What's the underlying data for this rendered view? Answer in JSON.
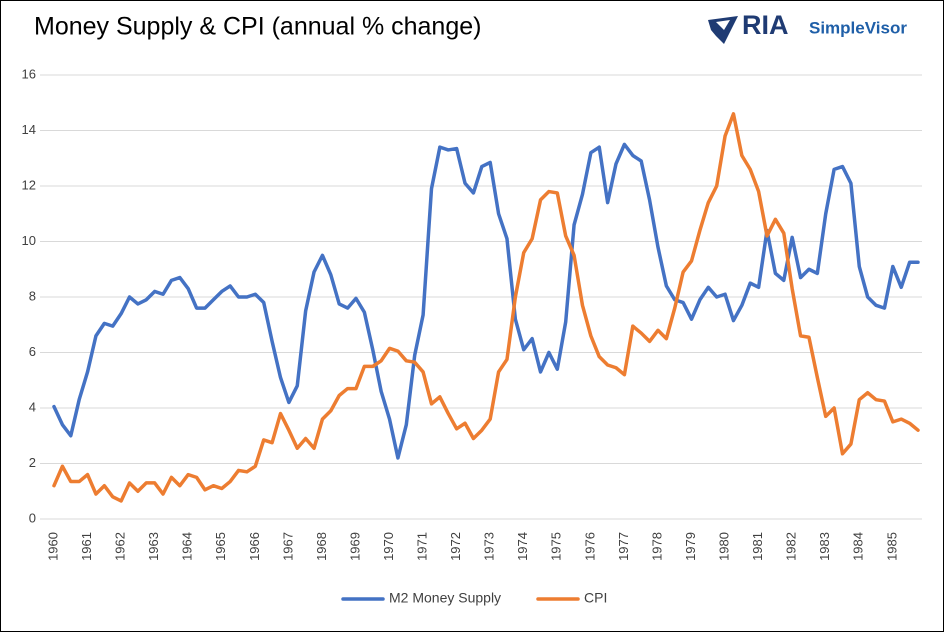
{
  "chart_data": {
    "type": "line",
    "title": "Money Supply & CPI (annual % change)",
    "logo": {
      "brand": "RIA",
      "product": "SimpleVisor"
    },
    "categories": [
      "1960",
      null,
      null,
      null,
      "1961",
      null,
      null,
      null,
      "1962",
      null,
      null,
      null,
      "1963",
      null,
      null,
      null,
      "1964",
      null,
      null,
      null,
      "1965",
      null,
      null,
      null,
      "1966",
      null,
      null,
      null,
      "1967",
      null,
      null,
      null,
      "1968",
      null,
      null,
      null,
      "1969",
      null,
      null,
      null,
      "1970",
      null,
      null,
      null,
      "1971",
      null,
      null,
      null,
      "1972",
      null,
      null,
      null,
      "1973",
      null,
      null,
      null,
      "1974",
      null,
      null,
      null,
      "1975",
      null,
      null,
      null,
      "1976",
      null,
      null,
      null,
      "1977",
      null,
      null,
      null,
      "1978",
      null,
      null,
      null,
      "1979",
      null,
      null,
      null,
      "1980",
      null,
      null,
      null,
      "1981",
      null,
      null,
      null,
      "1982",
      null,
      null,
      null,
      "1983",
      null,
      null,
      null,
      "1984",
      null,
      null,
      null,
      "1985",
      null,
      null,
      null
    ],
    "series": [
      {
        "name": "M2 Money Supply",
        "color": "#4472c4",
        "values": [
          4.05,
          3.4,
          3.0,
          4.3,
          5.3,
          6.6,
          7.05,
          6.95,
          7.4,
          8.0,
          7.75,
          7.9,
          8.2,
          8.1,
          8.6,
          8.7,
          8.3,
          7.6,
          7.6,
          7.9,
          8.2,
          8.4,
          8.0,
          8.0,
          8.1,
          7.8,
          6.4,
          5.1,
          4.2,
          4.8,
          7.5,
          8.9,
          9.5,
          8.8,
          7.75,
          7.6,
          7.95,
          7.45,
          6.1,
          4.6,
          3.6,
          2.2,
          3.4,
          5.9,
          7.35,
          11.9,
          13.4,
          13.3,
          13.35,
          12.1,
          11.75,
          12.7,
          12.85,
          11.0,
          10.1,
          7.2,
          6.1,
          6.5,
          5.3,
          6.0,
          5.4,
          7.1,
          10.6,
          11.7,
          13.2,
          13.4,
          11.4,
          12.8,
          13.5,
          13.1,
          12.9,
          11.5,
          9.8,
          8.4,
          7.9,
          7.8,
          7.2,
          7.9,
          8.35,
          8.0,
          8.1,
          7.15,
          7.7,
          8.5,
          8.35,
          10.4,
          8.85,
          8.6,
          10.15,
          8.7,
          9.0,
          8.85,
          11.0,
          12.6,
          12.7,
          12.1,
          9.1,
          8.0,
          7.7,
          7.6,
          9.1,
          8.35,
          9.25,
          9.25
        ]
      },
      {
        "name": "CPI",
        "color": "#ed7d31",
        "values": [
          1.2,
          1.9,
          1.35,
          1.35,
          1.6,
          0.9,
          1.2,
          0.8,
          0.65,
          1.3,
          1.0,
          1.3,
          1.3,
          0.9,
          1.5,
          1.2,
          1.6,
          1.5,
          1.05,
          1.2,
          1.1,
          1.35,
          1.75,
          1.7,
          1.9,
          2.85,
          2.75,
          3.8,
          3.2,
          2.55,
          2.9,
          2.55,
          3.6,
          3.9,
          4.45,
          4.7,
          4.7,
          5.5,
          5.5,
          5.7,
          6.15,
          6.05,
          5.7,
          5.65,
          5.3,
          4.15,
          4.4,
          3.8,
          3.25,
          3.45,
          2.9,
          3.2,
          3.6,
          5.3,
          5.75,
          8.0,
          9.6,
          10.1,
          11.5,
          11.8,
          11.75,
          10.2,
          9.5,
          7.7,
          6.6,
          5.85,
          5.55,
          5.45,
          5.2,
          6.95,
          6.7,
          6.4,
          6.8,
          6.5,
          7.6,
          8.9,
          9.3,
          10.4,
          11.4,
          12.0,
          13.8,
          14.6,
          13.1,
          12.6,
          11.8,
          10.2,
          10.8,
          10.3,
          8.3,
          6.6,
          6.55,
          5.1,
          3.7,
          4.0,
          2.35,
          2.7,
          4.3,
          4.55,
          4.3,
          4.25,
          3.5,
          3.6,
          3.45,
          3.2
        ]
      }
    ],
    "ylim": [
      0,
      16
    ],
    "yticks": [
      0,
      2,
      4,
      6,
      8,
      10,
      12,
      14,
      16
    ],
    "grid": true,
    "legend": "bottom"
  }
}
